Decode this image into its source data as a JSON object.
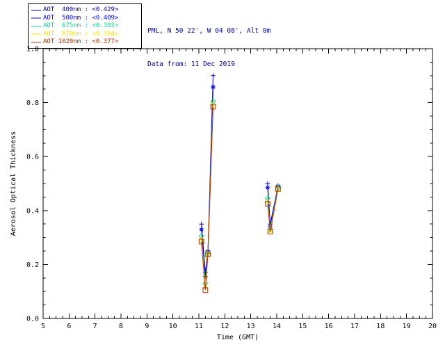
{
  "header": {
    "line1": "PML, N 50 22', W 04 08', Alt 0m",
    "line2": "Data from: 11 Dec 2019"
  },
  "chart_data": {
    "type": "line",
    "title": "",
    "xlabel": "Time (GMT)",
    "ylabel": "Aerosol Optical Thickness",
    "xlim": [
      5,
      20
    ],
    "ylim": [
      0.0,
      1.0
    ],
    "xticks": [
      5,
      6,
      7,
      8,
      9,
      10,
      11,
      12,
      13,
      14,
      15,
      16,
      17,
      18,
      19,
      20
    ],
    "yticks": [
      0.0,
      0.2,
      0.4,
      0.6,
      0.8,
      1.0
    ],
    "grid": false,
    "legend_position": "top-left",
    "x": [
      11.1,
      11.25,
      11.35,
      11.55,
      13.65,
      13.75,
      14.05
    ],
    "segments": [
      [
        0,
        3
      ],
      [
        4,
        6
      ]
    ],
    "series": [
      {
        "id": "aot-400nm",
        "label": "AOT  400nm",
        "value": "<0.429>",
        "color": "#00009c",
        "marker": "plus",
        "values": [
          0.35,
          0.17,
          0.252,
          0.9,
          0.5,
          0.35,
          0.492
        ]
      },
      {
        "id": "aot-500nm",
        "label": "AOT  500nm",
        "value": "<0.409>",
        "color": "#0000f0",
        "marker": "asterisk",
        "values": [
          0.33,
          0.155,
          0.246,
          0.858,
          0.485,
          0.34,
          0.49
        ]
      },
      {
        "id": "aot-675nm",
        "label": "AOT  675nm",
        "value": "<0.383>",
        "color": "#00d890",
        "marker": "diamond",
        "values": [
          0.305,
          0.13,
          0.242,
          0.805,
          0.445,
          0.33,
          0.486
        ]
      },
      {
        "id": "aot-870nm",
        "label": "AOT  870nm",
        "value": "<0.384>",
        "color": "#ffdf00",
        "marker": "triangle",
        "values": [
          0.295,
          0.12,
          0.24,
          0.795,
          0.435,
          0.328,
          0.483
        ]
      },
      {
        "id": "aot-1020nm",
        "label": "AOT 1020nm",
        "value": "<0.377>",
        "color": "#b03000",
        "marker": "square",
        "values": [
          0.285,
          0.105,
          0.238,
          0.785,
          0.425,
          0.322,
          0.48
        ]
      }
    ]
  }
}
